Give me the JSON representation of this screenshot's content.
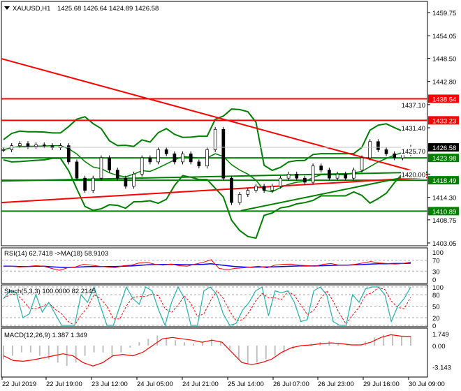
{
  "header": {
    "symbol": "XAUUSD,H1",
    "ohlc": "1425.68 1426.64 1424.89 1426.58"
  },
  "price_axis": {
    "ticks": [
      "1459.75",
      "1454.05",
      "1448.50",
      "1442.80",
      "1437.10",
      "1431.40",
      "1425.70",
      "1420.00",
      "1414.30",
      "1408.75",
      "1403.05"
    ],
    "tick_values": [
      1459.75,
      1454.05,
      1448.5,
      1442.8,
      1437.1,
      1431.4,
      1425.7,
      1420.0,
      1414.3,
      1408.75,
      1403.05
    ]
  },
  "time_axis": [
    "22 Jul 2019",
    "22 Jul 19:00",
    "23 Jul 12:00",
    "24 Jul 05:00",
    "24 Jul 21:00",
    "25 Jul 14:00",
    "26 Jul 07:00",
    "26 Jul 23:00",
    "29 Jul 16:00",
    "30 Jul 09:00"
  ],
  "colors": {
    "resistance": "#ff0000",
    "support": "#008000",
    "bands": "#008000",
    "current": "#000000",
    "rsi": "#ff0000",
    "rsi_ma": "#0000ff",
    "stoch_main": "#20b2aa",
    "stoch_signal": "#ff0000",
    "macd_hist": "#c0c0c0",
    "macd_signal": "#ff0000"
  },
  "chart_data": [
    {
      "type": "candlestick",
      "title": "XAUUSD,H1",
      "ylim": [
        1403.05,
        1459.75
      ],
      "closes": [
        1426,
        1427,
        1427.5,
        1426.8,
        1427.2,
        1427,
        1426.5,
        1427,
        1423,
        1419,
        1416,
        1419,
        1424,
        1421,
        1419,
        1417,
        1420,
        1424,
        1423,
        1426,
        1425,
        1423,
        1425,
        1423,
        1422,
        1426,
        1431,
        1419,
        1413,
        1415,
        1416,
        1417,
        1416,
        1417,
        1419,
        1420,
        1419,
        1418,
        1422,
        1421,
        1419,
        1420,
        1419,
        1421,
        1424,
        1428,
        1426,
        1425,
        1424,
        1425,
        1426.58
      ],
      "current_price": {
        "label": "1426.58",
        "value": 1426.58
      },
      "horizontal_levels": [
        {
          "label": "1438.54",
          "value": 1438.54,
          "kind": "resistance"
        },
        {
          "label": "1433.23",
          "value": 1433.23,
          "kind": "resistance"
        },
        {
          "label": "1423.98",
          "value": 1423.98,
          "kind": "support"
        },
        {
          "label": "1418.49",
          "value": 1418.49,
          "kind": "support"
        },
        {
          "label": "1410.89",
          "value": 1410.89,
          "kind": "support"
        }
      ],
      "trendlines": [
        {
          "kind": "resistance",
          "from": 1448.4,
          "to": 1419.8
        },
        {
          "kind": "resistance",
          "from": 1413.0,
          "to": 1419.2
        },
        {
          "kind": "support",
          "from": 1418.3,
          "to": 1420.5
        },
        {
          "kind": "support",
          "from": 1411.0,
          "to": 1420.4,
          "start_fraction": 0.56
        }
      ]
    },
    {
      "type": "line",
      "title": "RSI(14) 62.7418  ->MA(18) 58.9103",
      "ylim": [
        0,
        100
      ],
      "ticks": [
        "100",
        "70",
        "30",
        "0"
      ],
      "tick_values": [
        100,
        70,
        30,
        0
      ],
      "series": [
        {
          "name": "RSI(14)",
          "values": [
            47,
            48,
            45,
            47,
            50,
            48,
            40,
            33,
            42,
            45,
            55,
            52,
            48,
            45,
            43,
            50,
            52,
            60,
            62,
            55,
            52,
            56,
            50,
            48,
            56,
            62,
            72,
            40,
            35,
            40,
            42,
            45,
            48,
            42,
            52,
            55,
            56,
            52,
            50,
            48,
            55,
            58,
            52,
            52,
            55,
            60,
            65,
            60,
            58,
            56,
            58,
            62.74
          ]
        },
        {
          "name": "MA(18)",
          "values": [
            48,
            48,
            47,
            47,
            48,
            48,
            46,
            44,
            43,
            44,
            46,
            47,
            47,
            47,
            47,
            48,
            49,
            51,
            53,
            54,
            54,
            55,
            54,
            53,
            54,
            55,
            57,
            53,
            50,
            47,
            45,
            44,
            45,
            45,
            46,
            47,
            48,
            49,
            49,
            49,
            50,
            51,
            52,
            52,
            53,
            54,
            56,
            57,
            57,
            58,
            58,
            58.91
          ]
        }
      ]
    },
    {
      "type": "line",
      "title": "Stoch(5,3,3) 100.0000 82.2145",
      "ylim": [
        0,
        100
      ],
      "ticks": [
        "100",
        "80",
        "50",
        "20",
        "0"
      ],
      "tick_values": [
        100,
        80,
        50,
        20,
        0
      ],
      "series": [
        {
          "name": "Stoch(5,3,3)",
          "values": [
            70,
            90,
            85,
            20,
            30,
            80,
            35,
            60,
            30,
            0,
            0,
            0,
            80,
            60,
            100,
            50,
            0,
            0,
            50,
            100,
            70,
            55,
            100,
            90,
            40,
            0,
            60,
            100,
            70,
            0,
            0,
            90,
            100,
            80,
            30,
            0,
            5,
            40,
            60,
            90,
            100,
            25,
            90,
            85,
            90,
            60,
            10,
            15,
            90,
            100,
            80,
            10,
            0,
            0,
            80,
            60,
            95,
            100,
            100,
            80,
            10,
            50,
            70,
            100
          ]
        }
      ],
      "signal_last": 82.2145
    },
    {
      "type": "bar+line",
      "title": "MACD(12,26,9) 1.387 1.349",
      "ylim": [
        -3.143,
        1.749
      ],
      "ticks": [
        "1.749",
        "0.00",
        "-3.143"
      ],
      "tick_values": [
        1.749,
        0,
        -3.143
      ],
      "series": [
        {
          "name": "MACD",
          "values": [
            -2.0,
            -1.5,
            -1.0,
            -1.0,
            -1.5,
            -2.0,
            -2.5,
            -3.0,
            -2.5,
            -1.5,
            -1.0,
            -1.0,
            -1.5,
            -1.0,
            -0.3,
            0.5,
            1.0,
            1.5,
            1.2,
            0.8,
            0.5,
            0.3,
            0.5,
            1.0,
            0.5,
            -0.5,
            -2.0,
            -2.8,
            -2.5,
            -2.0,
            -1.5,
            -1.0,
            -0.5,
            0,
            0.3,
            0.5,
            0.7,
            0.4,
            0.2,
            0.1,
            0.6,
            1.2,
            1.6,
            1.5,
            1.4,
            1.387
          ]
        },
        {
          "name": "Signal",
          "values": [
            -1.5,
            -2.2,
            -2.3,
            -2.1,
            -1.8,
            -1.5,
            -1.2,
            -1.5,
            -2.5,
            -3.0,
            -2.5,
            -1.5,
            -1.3,
            -1.5,
            -1.0,
            0,
            1.0,
            1.2,
            1.0,
            0.8,
            0.5,
            0.8,
            0.5,
            -1.0,
            -2.5,
            -2.8,
            -2.5,
            -2.0,
            -1.0,
            -0.3,
            0,
            0.1,
            0.3,
            0.4,
            0.3,
            0.1,
            0.1,
            0.5,
            1.2,
            1.6,
            1.4,
            1.349
          ]
        }
      ]
    }
  ]
}
